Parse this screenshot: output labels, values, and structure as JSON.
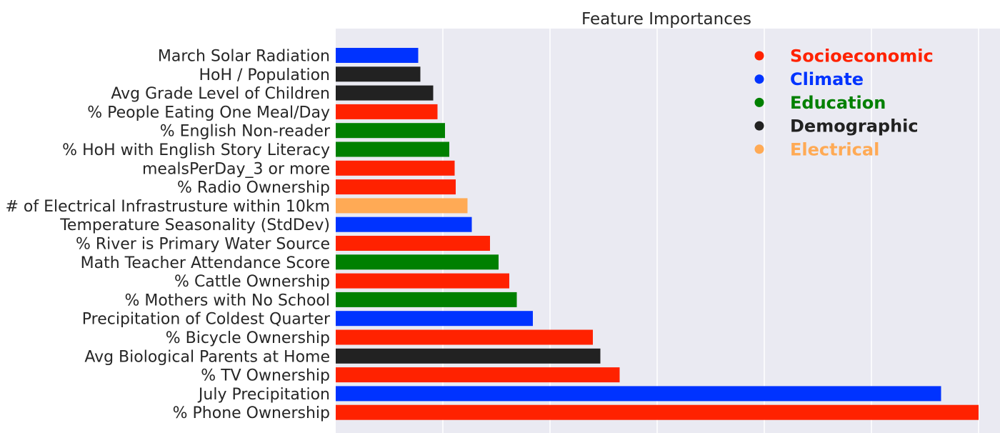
{
  "chart_data": {
    "type": "bar",
    "orientation": "horizontal",
    "title": "Feature Importances",
    "xlabel": "",
    "ylabel": "",
    "xlim": [
      0,
      0.062
    ],
    "grid": true,
    "legend_position": "top-right",
    "categories": [
      "March Solar Radiation",
      "HoH / Population",
      "Avg Grade Level of Children",
      "% People Eating One Meal/Day",
      "% English Non-reader",
      "% HoH with English Story Literacy",
      "mealsPerDay_3 or more",
      "% Radio Ownership",
      "# of Electrical Infrastrusture within 10km",
      "Temperature Seasonality (StdDev)",
      "% River is Primary Water Source",
      "Math Teacher Attendance Score",
      "% Cattle Ownership",
      "% Mothers with No School",
      "Precipitation of Coldest Quarter",
      "% Bicycle Ownership",
      "Avg Biological Parents at Home",
      "% TV Ownership",
      "July Precipitation",
      "% Phone Ownership"
    ],
    "values": [
      0.0077,
      0.0079,
      0.0091,
      0.0095,
      0.0102,
      0.0106,
      0.0111,
      0.0112,
      0.0123,
      0.0127,
      0.0144,
      0.0152,
      0.0162,
      0.0169,
      0.0184,
      0.024,
      0.0247,
      0.0265,
      0.0565,
      0.06
    ],
    "groups": [
      "Climate",
      "Demographic",
      "Demographic",
      "Socioeconomic",
      "Education",
      "Education",
      "Socioeconomic",
      "Socioeconomic",
      "Electrical",
      "Climate",
      "Socioeconomic",
      "Education",
      "Socioeconomic",
      "Education",
      "Climate",
      "Socioeconomic",
      "Demographic",
      "Socioeconomic",
      "Climate",
      "Socioeconomic"
    ],
    "legend": [
      {
        "name": "Socioeconomic",
        "color": "#ff2200"
      },
      {
        "name": "Climate",
        "color": "#0033ff"
      },
      {
        "name": "Education",
        "color": "#008000"
      },
      {
        "name": "Demographic",
        "color": "#222222"
      },
      {
        "name": "Electrical",
        "color": "#ffaa55"
      }
    ]
  }
}
